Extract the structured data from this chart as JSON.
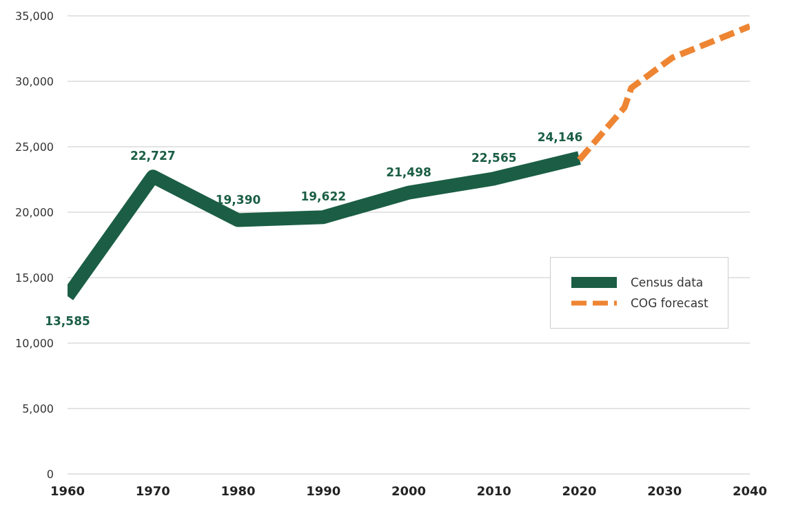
{
  "chart_data": {
    "type": "line",
    "xlim": [
      1960,
      2040
    ],
    "xticks": [
      1960,
      1970,
      1980,
      1990,
      2000,
      2010,
      2020,
      2030,
      2040
    ],
    "ylim": [
      0,
      35000
    ],
    "yticks": [
      {
        "value": 0,
        "label": "0"
      },
      {
        "value": 5000,
        "label": "5,000"
      },
      {
        "value": 10000,
        "label": "10,000"
      },
      {
        "value": 15000,
        "label": "15,000"
      },
      {
        "value": 20000,
        "label": "20,000"
      },
      {
        "value": 25000,
        "label": "25,000"
      },
      {
        "value": 30000,
        "label": "30,000"
      },
      {
        "value": 35000,
        "label": "35,000"
      }
    ],
    "grid": "y",
    "legend": "right",
    "marker": "none",
    "series": [
      {
        "name": "Census data",
        "color": "#1b5e45",
        "line_style": "solid",
        "x": [
          1960,
          1970,
          1980,
          1990,
          2000,
          2010,
          2020
        ],
        "values": [
          13585,
          22727,
          19390,
          19622,
          21498,
          22565,
          24146
        ],
        "value_labels": [
          "13,585",
          "22,727",
          "19,390",
          "19,622",
          "21,498",
          "22,565",
          "24,146"
        ]
      },
      {
        "name": "COG forecast",
        "color": "#ee8533",
        "line_style": "dashed",
        "x": [
          2020,
          2025.3,
          2026.1,
          2030.9,
          2040
        ],
        "values": [
          24000,
          28000,
          29500,
          31800,
          34200
        ]
      }
    ]
  }
}
